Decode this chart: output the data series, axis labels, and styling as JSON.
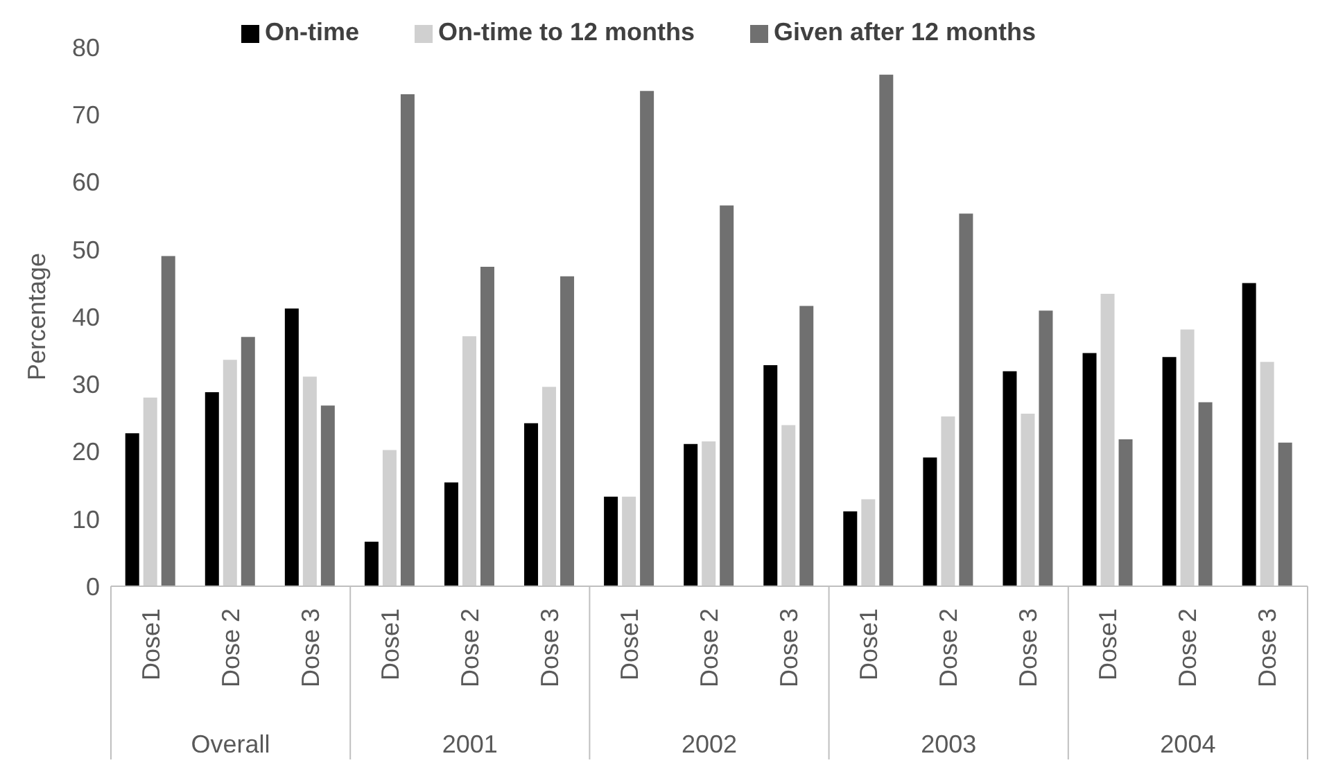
{
  "chart_data": {
    "type": "bar",
    "ylabel": "Percentage",
    "categories": [
      "Dose1",
      "Dose 2",
      "Dose 3",
      "Dose1",
      "Dose 2",
      "Dose 3",
      "Dose1",
      "Dose 2",
      "Dose 3",
      "Dose1",
      "Dose 2",
      "Dose 3",
      "Dose1",
      "Dose 2",
      "Dose 3"
    ],
    "annotations": [
      "Overall",
      "2001",
      "2002",
      "2003",
      "2004"
    ],
    "series": [
      {
        "name": "On-time",
        "color": "#000000",
        "values": [
          22.7,
          28.8,
          41.2,
          6.6,
          15.4,
          24.2,
          13.3,
          21.1,
          32.8,
          11.1,
          19.1,
          31.9,
          34.6,
          34,
          45
        ]
      },
      {
        "name": "On-time to 12 months",
        "color": "#d0d0d0",
        "values": [
          28,
          33.6,
          31.1,
          20.2,
          37.1,
          29.6,
          13.3,
          21.5,
          23.9,
          12.9,
          25.2,
          25.6,
          43.4,
          38.1,
          33.3
        ]
      },
      {
        "name": "Given after 12 months",
        "color": "#707070",
        "values": [
          49,
          37,
          26.8,
          73,
          47.4,
          46,
          73.5,
          56.5,
          41.6,
          75.9,
          55.3,
          40.9,
          21.8,
          27.3,
          21.3
        ]
      }
    ],
    "ylim": [
      0,
      80
    ],
    "yticks": [
      0,
      10,
      20,
      30,
      40,
      50,
      60,
      70,
      80
    ],
    "legend": "top"
  }
}
